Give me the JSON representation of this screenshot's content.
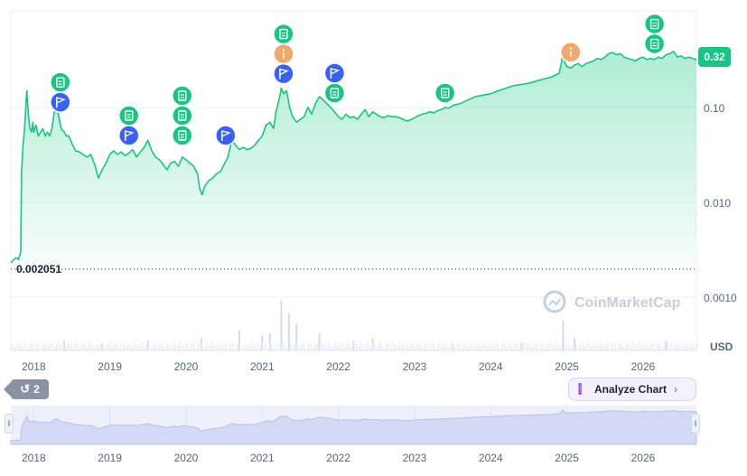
{
  "price_label": "0.32",
  "start_label": "0.002051",
  "currency_label": "USD",
  "watermark": "CoinMarketCap",
  "history_count": "2",
  "analyze_label": "Analyze Chart",
  "colors": {
    "line": "#16c784",
    "doc_event": "#16c784",
    "flag_event": "#3861fb",
    "info_event": "#f0a96b"
  },
  "chart_data": {
    "type": "area",
    "yscale": "log",
    "title": "",
    "xlabel": "",
    "ylabel": "",
    "y_ticks": [
      {
        "v": 0.1,
        "label": "0.10"
      },
      {
        "v": 0.01,
        "label": "0.010"
      },
      {
        "v": 0.001,
        "label": "0.0010"
      }
    ],
    "x_ticks": [
      {
        "x": 2018.0,
        "label": "2018"
      },
      {
        "x": 2019.0,
        "label": "2019"
      },
      {
        "x": 2020.0,
        "label": "2020"
      },
      {
        "x": 2021.0,
        "label": "2021"
      },
      {
        "x": 2022.0,
        "label": "2022"
      },
      {
        "x": 2023.0,
        "label": "2023"
      },
      {
        "x": 2024.0,
        "label": "2024"
      },
      {
        "x": 2025.0,
        "label": "2025"
      },
      {
        "x": 2026.0,
        "label": "2026"
      }
    ],
    "xlim": [
      2017.7,
      2026.7
    ],
    "reference_line": 0.002051,
    "series": [
      {
        "points": [
          [
            2017.7,
            0.0023
          ],
          [
            2017.72,
            0.0024
          ],
          [
            2017.74,
            0.0025
          ],
          [
            2017.77,
            0.0026
          ],
          [
            2017.8,
            0.0025
          ],
          [
            2017.83,
            0.003
          ],
          [
            2017.84,
            0.02
          ],
          [
            2017.86,
            0.04
          ],
          [
            2017.88,
            0.06
          ],
          [
            2017.89,
            0.08
          ],
          [
            2017.9,
            0.12
          ],
          [
            2017.91,
            0.15
          ],
          [
            2017.92,
            0.11
          ],
          [
            2017.94,
            0.07
          ],
          [
            2017.95,
            0.06
          ],
          [
            2017.97,
            0.055
          ],
          [
            2017.99,
            0.07
          ],
          [
            2018.0,
            0.055
          ],
          [
            2018.03,
            0.065
          ],
          [
            2018.06,
            0.05
          ],
          [
            2018.09,
            0.055
          ],
          [
            2018.12,
            0.06
          ],
          [
            2018.15,
            0.05
          ],
          [
            2018.18,
            0.055
          ],
          [
            2018.21,
            0.05
          ],
          [
            2018.24,
            0.06
          ],
          [
            2018.27,
            0.09
          ],
          [
            2018.3,
            0.1
          ],
          [
            2018.33,
            0.08
          ],
          [
            2018.36,
            0.06
          ],
          [
            2018.4,
            0.055
          ],
          [
            2018.43,
            0.05
          ],
          [
            2018.46,
            0.05
          ],
          [
            2018.5,
            0.042
          ],
          [
            2018.55,
            0.035
          ],
          [
            2018.6,
            0.034
          ],
          [
            2018.65,
            0.032
          ],
          [
            2018.7,
            0.03
          ],
          [
            2018.75,
            0.032
          ],
          [
            2018.8,
            0.025
          ],
          [
            2018.85,
            0.018
          ],
          [
            2018.9,
            0.022
          ],
          [
            2018.95,
            0.026
          ],
          [
            2019.0,
            0.032
          ],
          [
            2019.05,
            0.035
          ],
          [
            2019.1,
            0.032
          ],
          [
            2019.15,
            0.034
          ],
          [
            2019.2,
            0.031
          ],
          [
            2019.25,
            0.033
          ],
          [
            2019.3,
            0.036
          ],
          [
            2019.35,
            0.03
          ],
          [
            2019.4,
            0.034
          ],
          [
            2019.45,
            0.038
          ],
          [
            2019.5,
            0.045
          ],
          [
            2019.55,
            0.035
          ],
          [
            2019.6,
            0.03
          ],
          [
            2019.65,
            0.028
          ],
          [
            2019.7,
            0.025
          ],
          [
            2019.75,
            0.022
          ],
          [
            2019.8,
            0.026
          ],
          [
            2019.85,
            0.027
          ],
          [
            2019.9,
            0.024
          ],
          [
            2019.95,
            0.03
          ],
          [
            2020.0,
            0.028
          ],
          [
            2020.05,
            0.026
          ],
          [
            2020.1,
            0.024
          ],
          [
            2020.15,
            0.02
          ],
          [
            2020.18,
            0.014
          ],
          [
            2020.21,
            0.012
          ],
          [
            2020.25,
            0.015
          ],
          [
            2020.3,
            0.017
          ],
          [
            2020.35,
            0.018
          ],
          [
            2020.4,
            0.02
          ],
          [
            2020.45,
            0.021
          ],
          [
            2020.5,
            0.025
          ],
          [
            2020.55,
            0.03
          ],
          [
            2020.6,
            0.045
          ],
          [
            2020.65,
            0.04
          ],
          [
            2020.7,
            0.036
          ],
          [
            2020.75,
            0.038
          ],
          [
            2020.8,
            0.036
          ],
          [
            2020.85,
            0.037
          ],
          [
            2020.9,
            0.04
          ],
          [
            2020.95,
            0.045
          ],
          [
            2021.0,
            0.05
          ],
          [
            2021.05,
            0.065
          ],
          [
            2021.1,
            0.07
          ],
          [
            2021.15,
            0.06
          ],
          [
            2021.18,
            0.09
          ],
          [
            2021.22,
            0.12
          ],
          [
            2021.25,
            0.16
          ],
          [
            2021.28,
            0.14
          ],
          [
            2021.32,
            0.15
          ],
          [
            2021.36,
            0.1
          ],
          [
            2021.4,
            0.08
          ],
          [
            2021.45,
            0.07
          ],
          [
            2021.5,
            0.075
          ],
          [
            2021.55,
            0.08
          ],
          [
            2021.6,
            0.1
          ],
          [
            2021.65,
            0.085
          ],
          [
            2021.7,
            0.11
          ],
          [
            2021.75,
            0.13
          ],
          [
            2021.8,
            0.12
          ],
          [
            2021.85,
            0.11
          ],
          [
            2021.9,
            0.1
          ],
          [
            2021.95,
            0.09
          ],
          [
            2022.0,
            0.08
          ],
          [
            2022.05,
            0.075
          ],
          [
            2022.1,
            0.085
          ],
          [
            2022.15,
            0.078
          ],
          [
            2022.2,
            0.08
          ],
          [
            2022.25,
            0.075
          ],
          [
            2022.3,
            0.085
          ],
          [
            2022.35,
            0.095
          ],
          [
            2022.4,
            0.08
          ],
          [
            2022.45,
            0.09
          ],
          [
            2022.5,
            0.085
          ],
          [
            2022.55,
            0.08
          ],
          [
            2022.6,
            0.078
          ],
          [
            2022.65,
            0.082
          ],
          [
            2022.7,
            0.08
          ],
          [
            2022.75,
            0.08
          ],
          [
            2022.8,
            0.078
          ],
          [
            2022.85,
            0.075
          ],
          [
            2022.9,
            0.072
          ],
          [
            2022.95,
            0.074
          ],
          [
            2023.0,
            0.078
          ],
          [
            2023.05,
            0.082
          ],
          [
            2023.1,
            0.085
          ],
          [
            2023.15,
            0.087
          ],
          [
            2023.2,
            0.09
          ],
          [
            2023.25,
            0.088
          ],
          [
            2023.3,
            0.092
          ],
          [
            2023.35,
            0.095
          ],
          [
            2023.4,
            0.1
          ],
          [
            2023.45,
            0.098
          ],
          [
            2023.5,
            0.105
          ],
          [
            2023.6,
            0.11
          ],
          [
            2023.7,
            0.12
          ],
          [
            2023.8,
            0.13
          ],
          [
            2023.9,
            0.135
          ],
          [
            2024.0,
            0.14
          ],
          [
            2024.1,
            0.15
          ],
          [
            2024.2,
            0.16
          ],
          [
            2024.3,
            0.17
          ],
          [
            2024.4,
            0.175
          ],
          [
            2024.5,
            0.18
          ],
          [
            2024.6,
            0.19
          ],
          [
            2024.7,
            0.2
          ],
          [
            2024.8,
            0.21
          ],
          [
            2024.85,
            0.22
          ],
          [
            2024.9,
            0.23
          ],
          [
            2024.93,
            0.3
          ],
          [
            2024.95,
            0.45
          ],
          [
            2024.97,
            0.3
          ],
          [
            2025.0,
            0.27
          ],
          [
            2025.05,
            0.26
          ],
          [
            2025.1,
            0.28
          ],
          [
            2025.15,
            0.29
          ],
          [
            2025.2,
            0.27
          ],
          [
            2025.25,
            0.29
          ],
          [
            2025.3,
            0.3
          ],
          [
            2025.35,
            0.31
          ],
          [
            2025.4,
            0.33
          ],
          [
            2025.45,
            0.32
          ],
          [
            2025.5,
            0.34
          ],
          [
            2025.55,
            0.37
          ],
          [
            2025.6,
            0.38
          ],
          [
            2025.65,
            0.36
          ],
          [
            2025.7,
            0.37
          ],
          [
            2025.75,
            0.34
          ],
          [
            2025.8,
            0.33
          ],
          [
            2025.85,
            0.32
          ],
          [
            2025.9,
            0.31
          ],
          [
            2025.95,
            0.33
          ],
          [
            2026.0,
            0.34
          ],
          [
            2026.05,
            0.32
          ],
          [
            2026.1,
            0.33
          ],
          [
            2026.15,
            0.32
          ],
          [
            2026.2,
            0.34
          ],
          [
            2026.25,
            0.33
          ],
          [
            2026.3,
            0.36
          ],
          [
            2026.35,
            0.37
          ],
          [
            2026.4,
            0.39
          ],
          [
            2026.45,
            0.34
          ],
          [
            2026.5,
            0.35
          ],
          [
            2026.55,
            0.33
          ],
          [
            2026.6,
            0.34
          ],
          [
            2026.65,
            0.33
          ],
          [
            2026.7,
            0.32
          ]
        ]
      }
    ],
    "volume_spikes": [
      [
        2018.4,
        0.2
      ],
      [
        2018.9,
        0.15
      ],
      [
        2019.5,
        0.2
      ],
      [
        2020.2,
        0.25
      ],
      [
        2020.7,
        0.4
      ],
      [
        2021.0,
        0.3
      ],
      [
        2021.1,
        0.35
      ],
      [
        2021.25,
        1.0
      ],
      [
        2021.35,
        0.75
      ],
      [
        2021.45,
        0.55
      ],
      [
        2021.75,
        0.35
      ],
      [
        2022.2,
        0.2
      ],
      [
        2022.45,
        0.25
      ],
      [
        2023.5,
        0.15
      ],
      [
        2024.4,
        0.15
      ],
      [
        2024.95,
        0.6
      ],
      [
        2025.1,
        0.25
      ],
      [
        2026.3,
        0.2
      ]
    ],
    "events": [
      {
        "x": 2018.35,
        "stack": [
          "doc",
          "flag"
        ]
      },
      {
        "x": 2019.25,
        "stack": [
          "doc",
          "flag"
        ]
      },
      {
        "x": 2019.95,
        "stack": [
          "doc",
          "doc",
          "doc"
        ]
      },
      {
        "x": 2020.52,
        "stack": [
          "flag"
        ]
      },
      {
        "x": 2021.28,
        "stack": [
          "doc",
          "info",
          "flag"
        ]
      },
      {
        "x": 2021.95,
        "stack": [
          "flag",
          "doc"
        ]
      },
      {
        "x": 2023.4,
        "stack": [
          "doc"
        ]
      },
      {
        "x": 2025.05,
        "stack": [
          "info"
        ]
      },
      {
        "x": 2026.15,
        "stack": [
          "doc",
          "doc"
        ]
      }
    ]
  }
}
